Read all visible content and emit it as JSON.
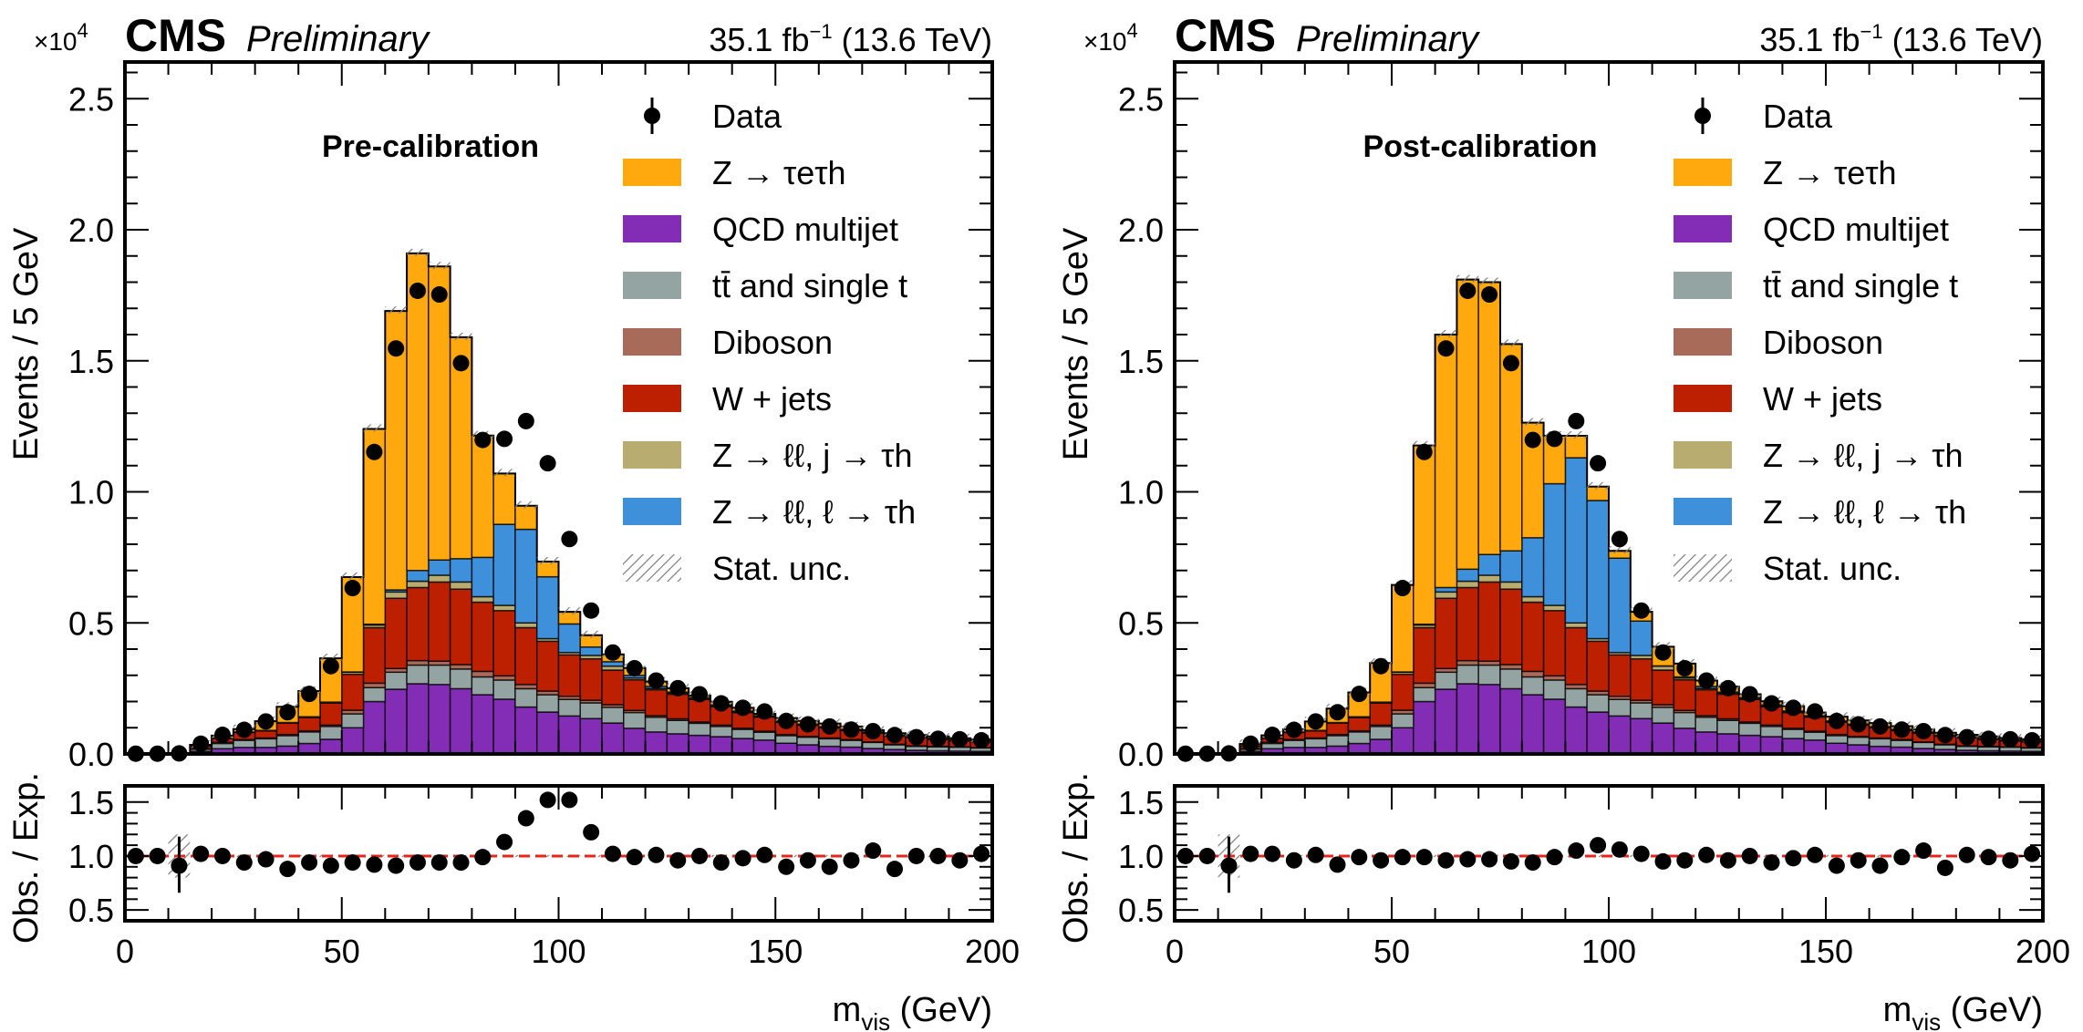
{
  "chart_data": [
    {
      "type": "bar",
      "panel": "left",
      "subtitle": "Pre-calibration",
      "experiment": "CMS",
      "status": "Preliminary",
      "lumi_label": "35.1 fb",
      "lumi_exponent": "−1",
      "energy_label": "(13.6 TeV)",
      "ylabel": "Events / 5 GeV",
      "y_multiplier": "×10",
      "y_multiplier_exp": "4",
      "ylim": [
        0,
        2.64
      ],
      "yticks": [
        "0.0",
        "0.5",
        "1.0",
        "1.5",
        "2.0",
        "2.5"
      ],
      "xlabel_main": "m",
      "xlabel_sub": "vis",
      "xlabel_unit": "(GeV)",
      "xlim": [
        0,
        200
      ],
      "xticks": [
        "0",
        "50",
        "100",
        "150",
        "200"
      ],
      "bin_width": 5,
      "ratio": {
        "ylabel": "Obs. / Exp.",
        "ylim": [
          0.4,
          1.65
        ],
        "yticks": [
          "0.5",
          "1.0",
          "1.5"
        ],
        "values": [
          1.0,
          1.0,
          0.91,
          1.02,
          1.0,
          0.94,
          0.97,
          0.88,
          0.94,
          0.91,
          0.94,
          0.92,
          0.91,
          0.94,
          0.94,
          0.94,
          0.99,
          1.13,
          1.35,
          1.52,
          1.52,
          1.22,
          1.02,
          0.99,
          1.01,
          0.96,
          1.0,
          0.94,
          0.98,
          1.01,
          0.9,
          0.96,
          0.9,
          0.96,
          1.05,
          0.88,
          1.0,
          1.0,
          0.96,
          1.02
        ]
      },
      "series": [
        {
          "name": "QCD multijet",
          "color": "#832db6",
          "values": [
            0,
            0,
            0,
            0.01,
            0.02,
            0.025,
            0.025,
            0.03,
            0.04,
            0.056,
            0.1,
            0.2,
            0.247,
            0.268,
            0.265,
            0.249,
            0.226,
            0.209,
            0.179,
            0.16,
            0.145,
            0.135,
            0.118,
            0.098,
            0.084,
            0.077,
            0.071,
            0.066,
            0.059,
            0.053,
            0.041,
            0.035,
            0.029,
            0.026,
            0.021,
            0.017,
            0.014,
            0.012,
            0.011,
            0.01
          ]
        },
        {
          "name": "tt̄ and single t",
          "color": "#94a4a2",
          "values": [
            0,
            0,
            0,
            0.008,
            0.02,
            0.027,
            0.033,
            0.04,
            0.044,
            0.049,
            0.053,
            0.053,
            0.065,
            0.071,
            0.074,
            0.075,
            0.068,
            0.073,
            0.07,
            0.066,
            0.063,
            0.06,
            0.06,
            0.06,
            0.056,
            0.051,
            0.046,
            0.039,
            0.035,
            0.03,
            0.029,
            0.029,
            0.029,
            0.026,
            0.023,
            0.018,
            0.015,
            0.015,
            0.015,
            0.013
          ]
        },
        {
          "name": "Diboson",
          "color": "#a96b59",
          "values": [
            0,
            0,
            0,
            0.002,
            0.004,
            0.003,
            0.003,
            0.004,
            0.004,
            0.005,
            0.014,
            0.017,
            0.014,
            0.017,
            0.015,
            0.017,
            0.021,
            0.016,
            0.016,
            0.014,
            0.012,
            0.01,
            0.01,
            0.008,
            0.006,
            0.006,
            0.005,
            0.005,
            0.004,
            0.004,
            0.004,
            0.003,
            0.003,
            0.003,
            0.002,
            0.002,
            0.002,
            0.002,
            0.001,
            0.001
          ]
        },
        {
          "name": "W + jets",
          "color": "#bd1f01",
          "values": [
            0,
            0,
            0,
            0.01,
            0.015,
            0.027,
            0.027,
            0.044,
            0.051,
            0.084,
            0.137,
            0.212,
            0.268,
            0.279,
            0.302,
            0.288,
            0.264,
            0.249,
            0.217,
            0.19,
            0.158,
            0.158,
            0.132,
            0.117,
            0.099,
            0.094,
            0.086,
            0.07,
            0.06,
            0.054,
            0.048,
            0.043,
            0.039,
            0.035,
            0.034,
            0.031,
            0.031,
            0.027,
            0.023,
            0.022
          ]
        },
        {
          "name": "Z → ℓℓ, j → τh",
          "color": "#b9ac70",
          "values": [
            0,
            0,
            0,
            0.001,
            0.002,
            0.002,
            0.002,
            0.002,
            0.003,
            0.004,
            0.008,
            0.01,
            0.024,
            0.024,
            0.026,
            0.027,
            0.021,
            0.02,
            0.018,
            0.01,
            0.009,
            0.013,
            0.015,
            0.007,
            0.005,
            0.004,
            0.004,
            0.004,
            0.003,
            0.003,
            0.002,
            0.002,
            0.002,
            0.002,
            0.002,
            0.002,
            0.002,
            0.002,
            0.002,
            0.002
          ]
        },
        {
          "name": "Z → ℓℓ, ℓ → τh",
          "color": "#3f90da",
          "values": [
            0,
            0,
            0,
            0,
            0,
            0,
            0,
            0,
            0,
            0,
            0.001,
            0.003,
            0.008,
            0.041,
            0.058,
            0.089,
            0.15,
            0.309,
            0.357,
            0.236,
            0.109,
            0.032,
            0.017,
            0.01,
            0.008,
            0.004,
            0.003,
            0.003,
            0.003,
            0.002,
            0.002,
            0.002,
            0.002,
            0.002,
            0.002,
            0.002,
            0.002,
            0.002,
            0.002,
            0.002
          ]
        },
        {
          "name": "Z → τeτh",
          "color": "#ffa90e",
          "values": [
            0.001,
            0.001,
            0.002,
            0.004,
            0.009,
            0.011,
            0.035,
            0.06,
            0.098,
            0.167,
            0.362,
            0.745,
            1.064,
            1.21,
            1.12,
            0.845,
            0.465,
            0.194,
            0.09,
            0.058,
            0.046,
            0.045,
            0.028,
            0.028,
            0.018,
            0.015,
            0.008,
            0.012,
            0.012,
            0.007,
            0.011,
            0.012,
            0.012,
            0.011,
            0.007,
            0.007,
            0.006,
            0.007,
            0.006,
            0.005
          ]
        }
      ],
      "data": {
        "name": "Data",
        "values": [
          0.001,
          0.001,
          0.002,
          0.039,
          0.073,
          0.092,
          0.124,
          0.159,
          0.229,
          0.335,
          0.633,
          1.152,
          1.547,
          1.767,
          1.753,
          1.491,
          1.198,
          1.202,
          1.27,
          1.109,
          0.82,
          0.547,
          0.387,
          0.327,
          0.28,
          0.251,
          0.228,
          0.193,
          0.176,
          0.162,
          0.126,
          0.113,
          0.105,
          0.093,
          0.087,
          0.072,
          0.064,
          0.058,
          0.056,
          0.052
        ]
      }
    },
    {
      "type": "bar",
      "panel": "right",
      "subtitle": "Post-calibration",
      "experiment": "CMS",
      "status": "Preliminary",
      "lumi_label": "35.1 fb",
      "lumi_exponent": "−1",
      "energy_label": "(13.6 TeV)",
      "ylabel": "Events / 5 GeV",
      "y_multiplier": "×10",
      "y_multiplier_exp": "4",
      "ylim": [
        0,
        2.64
      ],
      "yticks": [
        "0.0",
        "0.5",
        "1.0",
        "1.5",
        "2.0",
        "2.5"
      ],
      "xlabel_main": "m",
      "xlabel_sub": "vis",
      "xlabel_unit": "(GeV)",
      "xlim": [
        0,
        200
      ],
      "xticks": [
        "0",
        "50",
        "100",
        "150",
        "200"
      ],
      "bin_width": 5,
      "ratio": {
        "ylabel": "Obs. / Exp.",
        "ylim": [
          0.4,
          1.65
        ],
        "yticks": [
          "0.5",
          "1.0",
          "1.5"
        ],
        "values": [
          1.0,
          1.0,
          0.91,
          1.02,
          1.02,
          0.96,
          1.01,
          0.92,
          0.99,
          0.96,
          0.99,
          0.99,
          0.96,
          0.97,
          0.97,
          0.95,
          0.94,
          0.99,
          1.05,
          1.1,
          1.06,
          1.02,
          0.95,
          0.96,
          1.01,
          0.96,
          1.0,
          0.94,
          0.98,
          1.01,
          0.91,
          0.96,
          0.91,
          0.99,
          1.05,
          0.89,
          1.01,
          0.99,
          0.96,
          1.02
        ]
      },
      "series": [
        {
          "name": "QCD multijet",
          "color": "#832db6",
          "values": [
            0,
            0,
            0,
            0.01,
            0.02,
            0.025,
            0.025,
            0.03,
            0.04,
            0.056,
            0.1,
            0.2,
            0.247,
            0.268,
            0.265,
            0.249,
            0.226,
            0.209,
            0.179,
            0.16,
            0.145,
            0.135,
            0.118,
            0.098,
            0.084,
            0.077,
            0.071,
            0.066,
            0.059,
            0.053,
            0.041,
            0.035,
            0.029,
            0.026,
            0.021,
            0.017,
            0.014,
            0.012,
            0.011,
            0.01
          ]
        },
        {
          "name": "tt̄ and single t",
          "color": "#94a4a2",
          "values": [
            0,
            0,
            0,
            0.008,
            0.02,
            0.027,
            0.033,
            0.04,
            0.044,
            0.049,
            0.053,
            0.053,
            0.065,
            0.071,
            0.074,
            0.075,
            0.068,
            0.073,
            0.07,
            0.066,
            0.063,
            0.06,
            0.06,
            0.06,
            0.056,
            0.051,
            0.046,
            0.039,
            0.035,
            0.03,
            0.029,
            0.029,
            0.029,
            0.026,
            0.023,
            0.018,
            0.015,
            0.015,
            0.015,
            0.013
          ]
        },
        {
          "name": "Diboson",
          "color": "#a96b59",
          "values": [
            0,
            0,
            0,
            0.002,
            0.004,
            0.003,
            0.003,
            0.004,
            0.004,
            0.005,
            0.014,
            0.017,
            0.014,
            0.017,
            0.015,
            0.017,
            0.021,
            0.016,
            0.016,
            0.014,
            0.012,
            0.01,
            0.01,
            0.008,
            0.006,
            0.006,
            0.005,
            0.005,
            0.004,
            0.004,
            0.004,
            0.003,
            0.003,
            0.003,
            0.002,
            0.002,
            0.002,
            0.002,
            0.001,
            0.001
          ]
        },
        {
          "name": "W + jets",
          "color": "#bd1f01",
          "values": [
            0,
            0,
            0,
            0.01,
            0.015,
            0.027,
            0.027,
            0.044,
            0.051,
            0.084,
            0.137,
            0.212,
            0.268,
            0.279,
            0.302,
            0.288,
            0.264,
            0.249,
            0.217,
            0.19,
            0.158,
            0.158,
            0.132,
            0.117,
            0.099,
            0.094,
            0.086,
            0.07,
            0.06,
            0.054,
            0.048,
            0.043,
            0.039,
            0.035,
            0.034,
            0.031,
            0.031,
            0.027,
            0.023,
            0.022
          ]
        },
        {
          "name": "Z → ℓℓ, j → τh",
          "color": "#b9ac70",
          "values": [
            0,
            0,
            0,
            0.001,
            0.002,
            0.002,
            0.002,
            0.002,
            0.003,
            0.004,
            0.008,
            0.01,
            0.024,
            0.024,
            0.026,
            0.027,
            0.021,
            0.02,
            0.018,
            0.01,
            0.009,
            0.013,
            0.015,
            0.007,
            0.005,
            0.004,
            0.004,
            0.004,
            0.003,
            0.003,
            0.002,
            0.002,
            0.002,
            0.002,
            0.002,
            0.002,
            0.002,
            0.002,
            0.002,
            0.002
          ]
        },
        {
          "name": "Z → ℓℓ, ℓ → τh",
          "color": "#3f90da",
          "values": [
            0,
            0,
            0,
            0,
            0,
            0,
            0,
            0,
            0,
            0,
            0.001,
            0.003,
            0.017,
            0.046,
            0.079,
            0.119,
            0.225,
            0.464,
            0.63,
            0.527,
            0.36,
            0.131,
            0.001,
            0.004,
            0.008,
            0.004,
            0.003,
            0.003,
            0.003,
            0.002,
            0.002,
            0.002,
            0.002,
            0.002,
            0.002,
            0.002,
            0.002,
            0.002,
            0.002,
            0.002
          ]
        },
        {
          "name": "Z → τeτh",
          "color": "#ffa90e",
          "values": [
            0.001,
            0.001,
            0.002,
            0.007,
            0.01,
            0.01,
            0.034,
            0.053,
            0.093,
            0.149,
            0.332,
            0.682,
            0.965,
            1.105,
            1.039,
            0.789,
            0.439,
            0.183,
            0.084,
            0.053,
            0.028,
            0.035,
            0.073,
            0.051,
            0.022,
            0.021,
            0.013,
            0.014,
            0.018,
            0.012,
            0.016,
            0.014,
            0.014,
            0.012,
            0.009,
            0.009,
            0.007,
            0.007,
            0.007,
            0.006
          ]
        }
      ],
      "data": {
        "name": "Data",
        "values": [
          0.001,
          0.001,
          0.002,
          0.039,
          0.073,
          0.092,
          0.124,
          0.159,
          0.229,
          0.335,
          0.633,
          1.152,
          1.547,
          1.767,
          1.753,
          1.491,
          1.198,
          1.202,
          1.27,
          1.109,
          0.82,
          0.547,
          0.387,
          0.327,
          0.28,
          0.251,
          0.228,
          0.193,
          0.176,
          0.162,
          0.126,
          0.113,
          0.105,
          0.093,
          0.087,
          0.072,
          0.064,
          0.058,
          0.056,
          0.052
        ]
      }
    }
  ],
  "legend": {
    "placement": "top-right",
    "entries": [
      {
        "label": "Data",
        "kind": "marker"
      },
      {
        "label": "Z ",
        "math": "→ τeτh",
        "color": "#ffa90e",
        "kind": "box"
      },
      {
        "label": "QCD multijet",
        "color": "#832db6",
        "kind": "box"
      },
      {
        "label": "tt̄ and single t",
        "color": "#94a4a2",
        "kind": "box"
      },
      {
        "label": "Diboson",
        "color": "#a96b59",
        "kind": "box"
      },
      {
        "label": "W  +  jets",
        "color": "#bd1f01",
        "kind": "box"
      },
      {
        "label": "Z → ℓℓ, j → τh",
        "color": "#b9ac70",
        "kind": "box"
      },
      {
        "label": "Z  → ℓℓ, ℓ → τh",
        "color": "#3f90da",
        "kind": "box"
      },
      {
        "label": "Stat.  unc.",
        "kind": "hatch"
      }
    ]
  },
  "ratio_reference_color": "#e8241b"
}
